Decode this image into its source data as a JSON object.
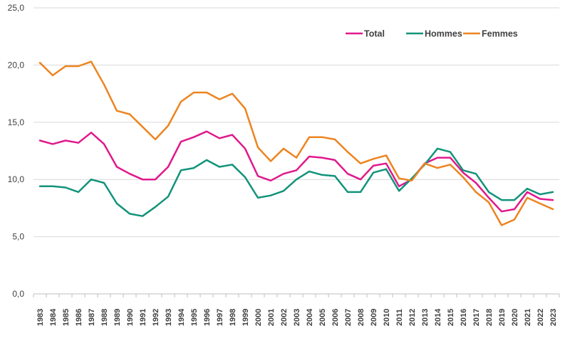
{
  "chart_data": {
    "type": "line",
    "title": "",
    "xlabel": "",
    "ylabel": "",
    "ylim": [
      0,
      25
    ],
    "y_ticks": [
      "0,0",
      "5,0",
      "10,0",
      "15,0",
      "20,0",
      "25,0"
    ],
    "y_tick_values": [
      0,
      5,
      10,
      15,
      20,
      25
    ],
    "grid": "horizontal",
    "legend_position": "top-right",
    "categories": [
      "1983",
      "1984",
      "1985",
      "1986",
      "1987",
      "1988",
      "1989",
      "1990",
      "1991",
      "1992",
      "1993",
      "1994",
      "1995",
      "1996",
      "1997",
      "1998",
      "1999",
      "2000",
      "2001",
      "2002",
      "2003",
      "2004",
      "2005",
      "2006",
      "2007",
      "2008",
      "2009",
      "2010",
      "2011",
      "2012",
      "2013",
      "2014",
      "2015",
      "2016",
      "2017",
      "2018",
      "2019",
      "2020",
      "2021",
      "2022",
      "2023"
    ],
    "series": [
      {
        "name": "Total",
        "color": "#E0198C",
        "values": [
          13.4,
          13.1,
          13.4,
          13.2,
          14.1,
          13.1,
          11.1,
          10.5,
          10.0,
          10.0,
          11.1,
          13.3,
          13.7,
          14.2,
          13.6,
          13.9,
          12.7,
          10.3,
          9.9,
          10.5,
          10.8,
          12.0,
          11.9,
          11.7,
          10.5,
          10.0,
          11.2,
          11.4,
          9.4,
          10.0,
          11.4,
          11.9,
          11.9,
          10.6,
          9.7,
          8.4,
          7.2,
          7.4,
          8.9,
          8.3,
          8.2
        ]
      },
      {
        "name": "Hommes",
        "color": "#12937A",
        "values": [
          9.4,
          9.4,
          9.3,
          8.9,
          10.0,
          9.7,
          7.9,
          7.0,
          6.8,
          7.6,
          8.5,
          10.8,
          11.0,
          11.7,
          11.1,
          11.3,
          10.2,
          8.4,
          8.6,
          9.0,
          10.0,
          10.7,
          10.4,
          10.3,
          8.9,
          8.9,
          10.6,
          10.9,
          9.0,
          10.1,
          11.3,
          12.7,
          12.4,
          10.8,
          10.5,
          8.9,
          8.2,
          8.2,
          9.2,
          8.7,
          8.9
        ]
      },
      {
        "name": "Femmes",
        "color": "#ED8420",
        "values": [
          20.2,
          19.1,
          19.9,
          19.9,
          20.3,
          18.3,
          16.0,
          15.7,
          14.6,
          13.5,
          14.7,
          16.8,
          17.6,
          17.6,
          17.0,
          17.5,
          16.2,
          12.8,
          11.6,
          12.7,
          11.9,
          13.7,
          13.7,
          13.5,
          12.4,
          11.4,
          11.8,
          12.1,
          10.1,
          9.9,
          11.4,
          11.0,
          11.3,
          10.2,
          8.9,
          8.0,
          6.0,
          6.5,
          8.4,
          7.9,
          7.4
        ]
      }
    ]
  }
}
